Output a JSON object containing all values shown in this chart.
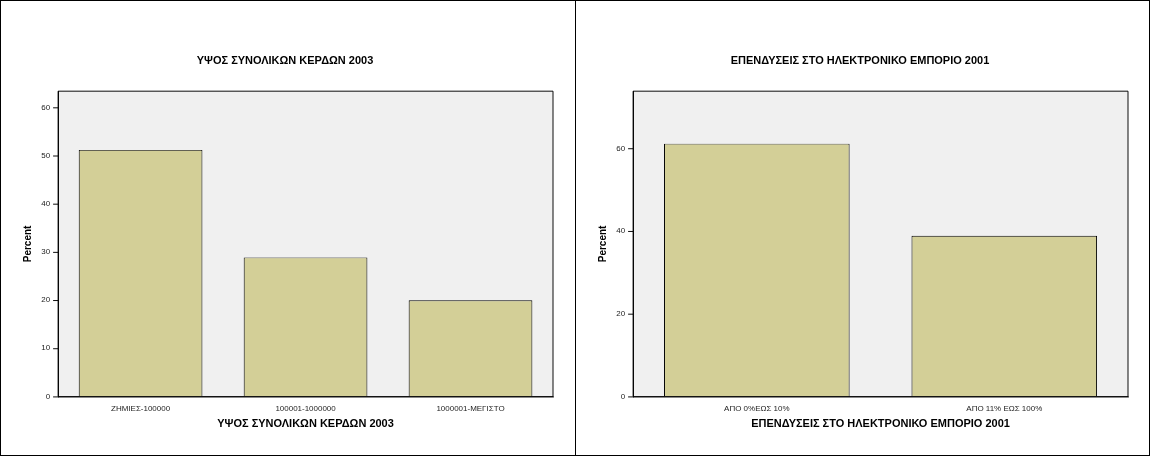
{
  "chart_data": [
    {
      "type": "bar",
      "title": "ΥΨΟΣ ΣΥΝΟΛΙΚΩΝ ΚΕΡΔΩΝ 2003",
      "xlabel": "ΥΨΟΣ ΣΥΝΟΛΙΚΩΝ ΚΕΡΔΩΝ 2003",
      "ylabel": "Percent",
      "categories": [
        "ΖΗΜΙΕΣ-100000",
        "100001-1000000",
        "1000001-ΜΕΓΙΣΤΟ"
      ],
      "values": [
        51.2,
        28.9,
        20.0
      ],
      "color": "#d3cf97",
      "ylim": [
        0,
        63.4
      ],
      "yticks": [
        0,
        10,
        20,
        30,
        40,
        50,
        60
      ],
      "grid": false,
      "legend": false
    },
    {
      "type": "bar",
      "title": "ΕΠΕΝΔΥΣΕΙΣ ΣΤΟ ΗΛΕΚΤΡΟΝΙΚΟ ΕΜΠΟΡΙΟ 2001",
      "xlabel": "ΕΠΕΝΔΥΣΕΙΣ ΣΤΟ ΗΛΕΚΤΡΟΝΙΚΟ ΕΜΠΟΡΙΟ 2001",
      "ylabel": "Percent",
      "categories": [
        "ΑΠΟ 0%ΕΩΣ 10%",
        "ΑΠΟ 11% ΕΩΣ 100%"
      ],
      "values": [
        61.2,
        38.9
      ],
      "color": "#d3cf97",
      "ylim": [
        0,
        73.9
      ],
      "yticks": [
        0,
        20,
        40,
        60
      ],
      "grid": false,
      "legend": false
    }
  ]
}
